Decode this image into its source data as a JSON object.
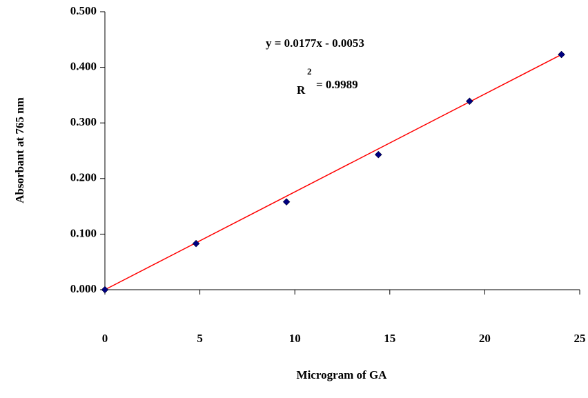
{
  "chart_data": {
    "type": "scatter",
    "x_label": "Microgram of GA",
    "y_label": "Absorbant at 765 nm",
    "annotations": [
      "y = 0.0177x - 0.0053",
      "R",
      "2",
      "= 0.9989"
    ],
    "series": [
      {
        "color": "#000080",
        "x": [
          0,
          4.8,
          9.56,
          14.4,
          19.2,
          24.04
        ],
        "values": [
          0,
          0.083,
          0.158,
          0.243,
          0.339,
          0.423
        ]
      }
    ],
    "trendline": {
      "color": "#ff0000",
      "x": [
        0,
        24.04
      ],
      "values": [
        0,
        0.423
      ]
    },
    "xlim": [
      0,
      25
    ],
    "xticks": [
      0,
      5,
      10,
      15,
      20,
      25
    ],
    "ylim": [
      0,
      0.5
    ],
    "yticks": [
      {
        "value": 0,
        "label": "0.000"
      },
      {
        "value": 0.1,
        "label": "0.100"
      },
      {
        "value": 0.2,
        "label": "0.200"
      },
      {
        "value": 0.3,
        "label": "0.300"
      },
      {
        "value": 0.4,
        "label": "0.400"
      },
      {
        "value": 0.5,
        "label": "0.500"
      }
    ]
  }
}
